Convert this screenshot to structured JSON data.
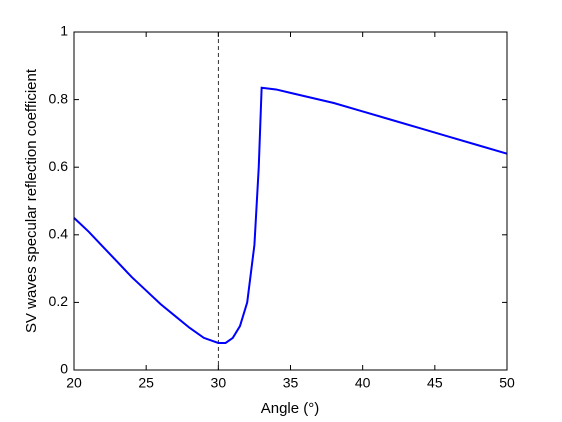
{
  "chart_data": {
    "type": "line",
    "xlabel": "Angle  (°)",
    "ylabel": "SV waves specular reflection coefficient",
    "x": [
      20,
      21,
      22,
      23,
      24,
      25,
      26,
      27,
      28,
      29,
      30,
      30.5,
      31,
      31.5,
      32,
      32.5,
      32.8,
      33,
      34,
      35,
      36,
      37,
      38,
      40,
      42,
      44,
      46,
      48,
      50
    ],
    "series": [
      {
        "color": "#0000ff",
        "values": [
          0.45,
          0.41,
          0.365,
          0.32,
          0.275,
          0.235,
          0.195,
          0.16,
          0.125,
          0.095,
          0.08,
          0.08,
          0.095,
          0.13,
          0.2,
          0.37,
          0.6,
          0.835,
          0.83,
          0.82,
          0.81,
          0.8,
          0.79,
          0.765,
          0.74,
          0.715,
          0.69,
          0.665,
          0.64
        ]
      }
    ],
    "vline": 30,
    "xlim": [
      20,
      50
    ],
    "xticks": [
      20,
      25,
      30,
      35,
      40,
      45,
      50
    ],
    "ylim": [
      0,
      1
    ],
    "yticks": [
      0,
      0.2,
      0.4,
      0.6,
      0.8,
      1
    ],
    "grid": false
  }
}
